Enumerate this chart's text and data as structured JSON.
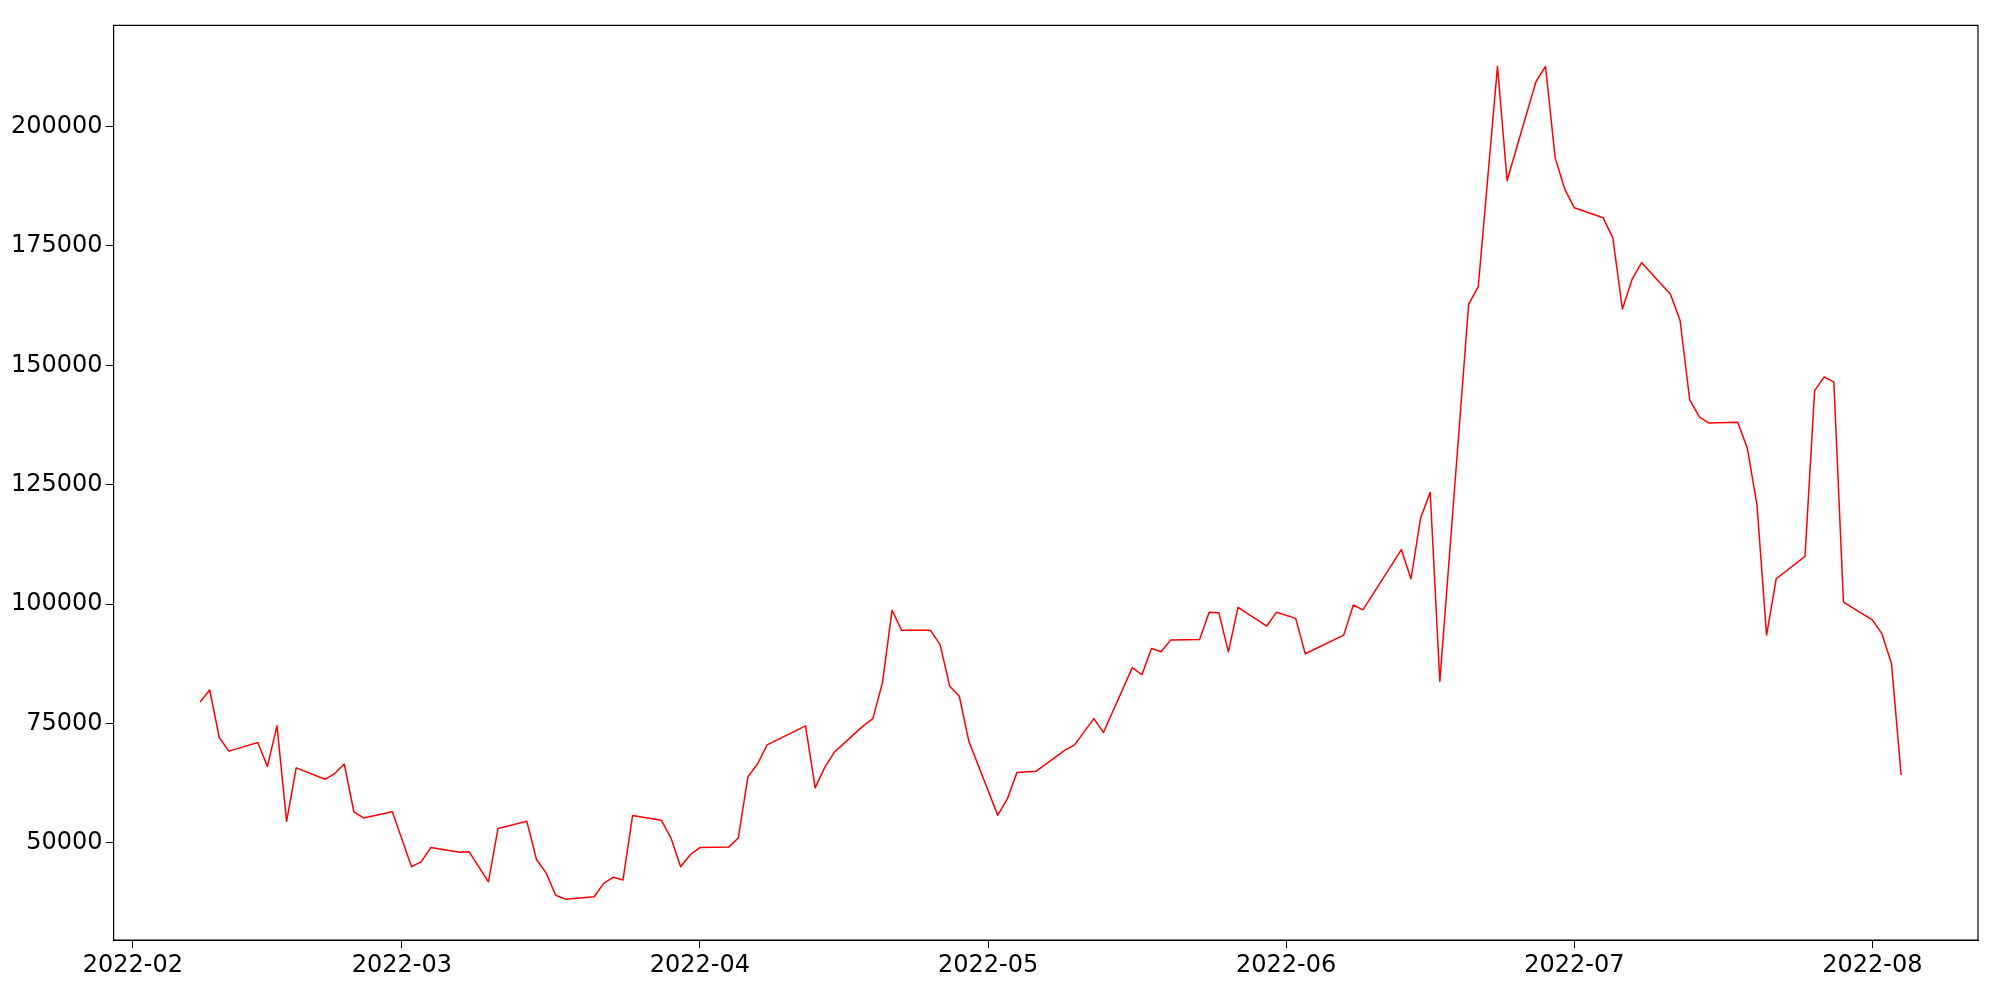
{
  "chart_data": {
    "type": "line",
    "x": [
      "2022-02-08",
      "2022-02-09",
      "2022-02-10",
      "2022-02-11",
      "2022-02-14",
      "2022-02-15",
      "2022-02-16",
      "2022-02-17",
      "2022-02-18",
      "2022-02-21",
      "2022-02-22",
      "2022-02-23",
      "2022-02-24",
      "2022-02-25",
      "2022-02-28",
      "2022-03-02",
      "2022-03-03",
      "2022-03-04",
      "2022-03-07",
      "2022-03-08",
      "2022-03-10",
      "2022-03-11",
      "2022-03-14",
      "2022-03-15",
      "2022-03-16",
      "2022-03-17",
      "2022-03-18",
      "2022-03-21",
      "2022-03-22",
      "2022-03-23",
      "2022-03-24",
      "2022-03-25",
      "2022-03-28",
      "2022-03-29",
      "2022-03-30",
      "2022-03-31",
      "2022-04-01",
      "2022-04-04",
      "2022-04-05",
      "2022-04-06",
      "2022-04-07",
      "2022-04-08",
      "2022-04-11",
      "2022-04-12",
      "2022-04-13",
      "2022-04-14",
      "2022-04-15",
      "2022-04-18",
      "2022-04-19",
      "2022-04-20",
      "2022-04-21",
      "2022-04-22",
      "2022-04-25",
      "2022-04-26",
      "2022-04-27",
      "2022-04-28",
      "2022-04-29",
      "2022-05-02",
      "2022-05-03",
      "2022-05-04",
      "2022-05-06",
      "2022-05-09",
      "2022-05-10",
      "2022-05-12",
      "2022-05-13",
      "2022-05-16",
      "2022-05-17",
      "2022-05-18",
      "2022-05-19",
      "2022-05-20",
      "2022-05-23",
      "2022-05-24",
      "2022-05-25",
      "2022-05-26",
      "2022-05-27",
      "2022-05-30",
      "2022-05-31",
      "2022-06-02",
      "2022-06-03",
      "2022-06-07",
      "2022-06-08",
      "2022-06-09",
      "2022-06-13",
      "2022-06-14",
      "2022-06-15",
      "2022-06-16",
      "2022-06-17",
      "2022-06-20",
      "2022-06-21",
      "2022-06-23",
      "2022-06-24",
      "2022-06-27",
      "2022-06-28",
      "2022-06-29",
      "2022-06-30",
      "2022-07-01",
      "2022-07-04",
      "2022-07-05",
      "2022-07-06",
      "2022-07-07",
      "2022-07-08",
      "2022-07-11",
      "2022-07-12",
      "2022-07-13",
      "2022-07-14",
      "2022-07-15",
      "2022-07-18",
      "2022-07-19",
      "2022-07-20",
      "2022-07-21",
      "2022-07-22",
      "2022-07-25",
      "2022-07-26",
      "2022-07-27",
      "2022-07-28",
      "2022-07-29",
      "2022-08-01",
      "2022-08-02",
      "2022-08-03",
      "2022-08-04"
    ],
    "series": [
      {
        "color": "#ff0000",
        "values": [
          79500,
          82000,
          72000,
          69200,
          71000,
          66000,
          74500,
          54500,
          65700,
          63300,
          64500,
          66500,
          56500,
          55200,
          56500,
          45000,
          46000,
          49000,
          48000,
          48100,
          41800,
          53000,
          54500,
          46500,
          43700,
          39000,
          38200,
          38700,
          41500,
          42800,
          42200,
          55700,
          54700,
          51000,
          45000,
          47500,
          49000,
          49100,
          51000,
          63800,
          66500,
          70500,
          73500,
          74500,
          61500,
          65800,
          69000,
          74500,
          76000,
          83500,
          98700,
          94500,
          94500,
          91500,
          82800,
          80700,
          71200,
          55800,
          59200,
          64700,
          65000,
          69400,
          70500,
          76000,
          73100,
          86700,
          85200,
          90700,
          90000,
          92500,
          92600,
          98300,
          98200,
          90000,
          99300,
          95400,
          98300,
          97000,
          89600,
          93500,
          99800,
          98800,
          111400,
          105300,
          118000,
          123400,
          83800,
          162800,
          166500,
          212600,
          188700,
          209400,
          212600,
          193500,
          186900,
          183000,
          180900,
          176700,
          161800,
          168000,
          171500,
          164900,
          159400,
          142800,
          139200,
          137900,
          138100,
          132600,
          120800,
          93500,
          105300,
          110000,
          144700,
          147600,
          146500,
          100400,
          96700,
          93800,
          87500,
          64200
        ]
      }
    ],
    "xlim": [
      "2022-01-30",
      "2022-08-12"
    ],
    "xticks": [
      "2022-02",
      "2022-03",
      "2022-04",
      "2022-05",
      "2022-06",
      "2022-07",
      "2022-08"
    ],
    "ylim": [
      29600,
      221200
    ],
    "yticks": [
      50000,
      75000,
      100000,
      125000,
      150000,
      175000,
      200000
    ],
    "grid": false,
    "legend": false,
    "marker": "none",
    "line_style": "solid"
  }
}
